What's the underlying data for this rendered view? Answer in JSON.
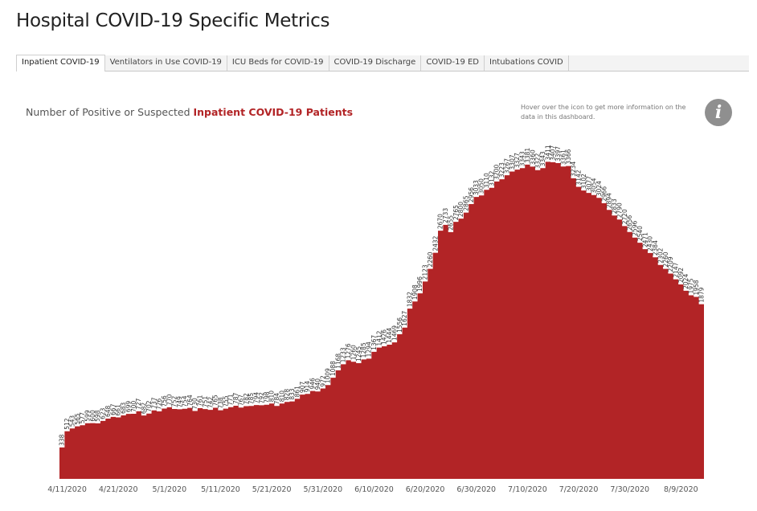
{
  "page": {
    "title": "Hospital COVID-19 Specific Metrics"
  },
  "tabs": [
    {
      "label": "Inpatient COVID-19",
      "active": true
    },
    {
      "label": "Ventilators in Use COVID-19",
      "active": false
    },
    {
      "label": "ICU Beds for COVID-19",
      "active": false
    },
    {
      "label": "COVID-19 Discharge",
      "active": false
    },
    {
      "label": "COVID-19 ED",
      "active": false
    },
    {
      "label": "Intubations COVID",
      "active": false
    }
  ],
  "subtitle": {
    "prefix": "Number of Positive or Suspected ",
    "highlight": "Inpatient COVID-19 Patients"
  },
  "info": {
    "hint_text": "Hover over the icon to get more information on the data in this dashboard.",
    "icon": "info-icon"
  },
  "colors": {
    "fill": "#b22426",
    "highlight_text": "#b22426",
    "info_icon_bg": "#8f8f8f"
  },
  "chart_data": {
    "type": "area",
    "title": "",
    "xlabel": "",
    "ylabel": "",
    "start_date": "2020-04-10",
    "x_tick_labels": [
      "4/11/2020",
      "4/21/2020",
      "5/1/2020",
      "5/11/2020",
      "5/21/2020",
      "5/31/2020",
      "6/10/2020",
      "6/20/2020",
      "6/30/2020",
      "7/10/2020",
      "7/20/2020",
      "7/30/2020",
      "8/9/2020"
    ],
    "ylim": [
      0,
      3700
    ],
    "values": [
      338,
      512,
      543,
      565,
      577,
      599,
      600,
      598,
      623,
      648,
      667,
      661,
      683,
      699,
      700,
      727,
      682,
      702,
      737,
      726,
      756,
      770,
      752,
      749,
      754,
      764,
      730,
      761,
      751,
      742,
      765,
      738,
      755,
      771,
      787,
      767,
      782,
      785,
      794,
      792,
      798,
      810,
      784,
      810,
      828,
      833,
      861,
      907,
      914,
      946,
      940,
      972,
      1009,
      1088,
      1168,
      1233,
      1276,
      1260,
      1245,
      1285,
      1294,
      1367,
      1412,
      1426,
      1444,
      1469,
      1556,
      1627,
      1832,
      1908,
      1996,
      2123,
      2260,
      2432,
      2670,
      2733,
      2655,
      2765,
      2800,
      2865,
      2956,
      3033,
      3050,
      3110,
      3132,
      3200,
      3223,
      3267,
      3307,
      3327,
      3343,
      3381,
      3360,
      3322,
      3343,
      3411,
      3407,
      3397,
      3361,
      3366,
      3234,
      3142,
      3102,
      3077,
      3054,
      3024,
      2966,
      2894,
      2833,
      2790,
      2720,
      2656,
      2596,
      2540,
      2471,
      2430,
      2384,
      2302,
      2260,
      2209,
      2147,
      2092,
      2024,
      1975,
      1958,
      1879
    ]
  }
}
